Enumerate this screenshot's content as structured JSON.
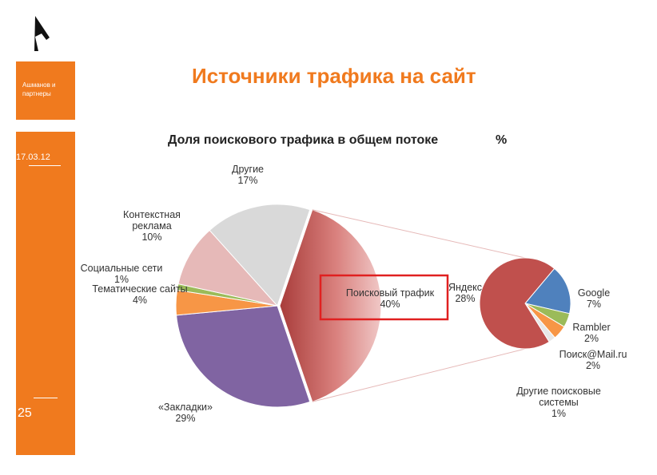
{
  "slide": {
    "company": "Ашманов и партнеры",
    "date": "17.03.12",
    "page_number": "25",
    "title": "Источники трафика на сайт"
  },
  "chart_data": {
    "type": "pie",
    "title": "Доля поискового трафика в общем потоке",
    "unit": "%",
    "categories": [
      "Поисковый трафик",
      "«Закладки»",
      "Тематические сайты",
      "Социальные сети",
      "Контекстная реклама",
      "Другие"
    ],
    "values": [
      40,
      29,
      4,
      1,
      10,
      17
    ],
    "value_labels": [
      "40%",
      "29%",
      "4%",
      "1%",
      "10%",
      "17%"
    ],
    "colors": [
      "#c0504d",
      "#8064a2",
      "#f79646",
      "#9bbb59",
      "#e6b9b8",
      "#d9d9d9"
    ],
    "breakdown": {
      "categories": [
        "Google",
        "Rambler",
        "Поиск@Mail.ru",
        "Другие поисковые системы",
        "Яндекс"
      ],
      "values": [
        7,
        2,
        2,
        1,
        28
      ],
      "value_labels": [
        "7%",
        "2%",
        "2%",
        "1%",
        "28%"
      ],
      "colors": [
        "#4f81bd",
        "#9bbb59",
        "#f79646",
        "#e8e8e8",
        "#c0504d"
      ]
    }
  }
}
